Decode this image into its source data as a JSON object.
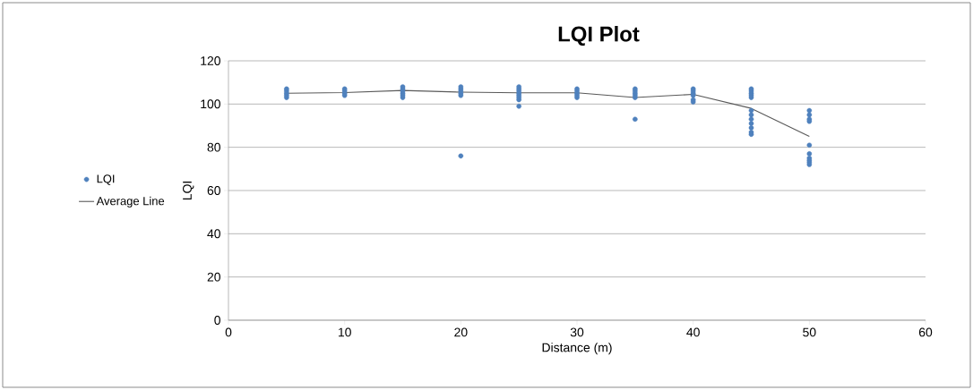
{
  "chart_data": {
    "type": "scatter",
    "title": "LQI Plot",
    "xlabel": "Distance (m)",
    "ylabel": "LQI",
    "xlim": [
      0,
      60
    ],
    "xticks": [
      0,
      10,
      20,
      30,
      40,
      50,
      60
    ],
    "ylim": [
      0,
      120
    ],
    "yticks": [
      0,
      20,
      40,
      60,
      80,
      100,
      120
    ],
    "grid": "y",
    "legend": "left",
    "marker": "circle",
    "series": [
      {
        "name": "LQI",
        "color": "#4f81bd",
        "x": [
          5,
          5,
          5,
          5,
          5,
          10,
          10,
          10,
          10,
          15,
          15,
          15,
          15,
          15,
          15,
          20,
          20,
          20,
          20,
          20,
          20,
          25,
          25,
          25,
          25,
          25,
          25,
          25,
          25,
          30,
          30,
          30,
          30,
          30,
          35,
          35,
          35,
          35,
          35,
          35,
          40,
          40,
          40,
          40,
          40,
          40,
          45,
          45,
          45,
          45,
          45,
          45,
          45,
          45,
          45,
          45,
          45,
          45,
          50,
          50,
          50,
          50,
          50,
          50,
          50,
          50,
          50,
          50
        ],
        "values": [
          103,
          104,
          105,
          106,
          107,
          104,
          105,
          106,
          107,
          103,
          104,
          105,
          106,
          107,
          108,
          104,
          105,
          106,
          107,
          108,
          76,
          102,
          103,
          104,
          105,
          106,
          107,
          108,
          99,
          103,
          104,
          105,
          106,
          107,
          103,
          104,
          105,
          106,
          107,
          93,
          101,
          102,
          104,
          105,
          106,
          107,
          103,
          104,
          105,
          106,
          107,
          97,
          95,
          93,
          91,
          89,
          87,
          86,
          97,
          95,
          93,
          92,
          81,
          77,
          75,
          74,
          73,
          72
        ]
      },
      {
        "name": "Average Line",
        "type": "line",
        "color": "#595959",
        "line_style": "solid",
        "marker": "none",
        "x": [
          5,
          10,
          15,
          20,
          25,
          30,
          35,
          40,
          45,
          50
        ],
        "values": [
          105,
          105.3,
          106.3,
          105.5,
          105.2,
          105.2,
          103,
          104.5,
          98,
          85
        ]
      }
    ]
  }
}
